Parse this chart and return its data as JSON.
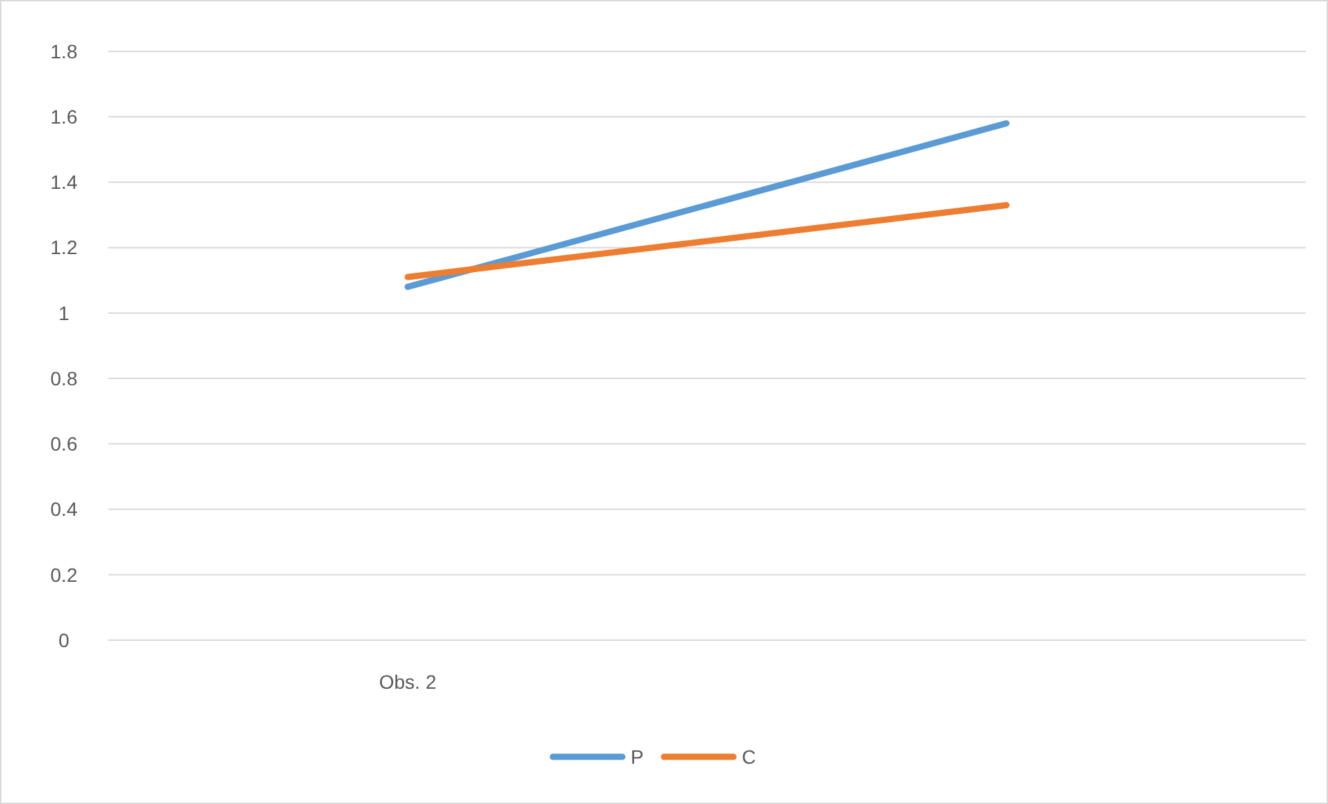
{
  "chart_data": {
    "type": "line",
    "categories": [
      "Obs. 2",
      null
    ],
    "series": [
      {
        "name": "P",
        "color": "#5b9bd5",
        "values": [
          1.08,
          1.58
        ]
      },
      {
        "name": "C",
        "color": "#ed7d31",
        "values": [
          1.11,
          1.33
        ]
      }
    ],
    "ylim": [
      0,
      1.8
    ],
    "yticks": [
      0,
      0.2,
      0.4,
      0.6,
      0.8,
      1,
      1.2,
      1.4,
      1.6,
      1.8
    ],
    "grid": "y",
    "legend": "bottom",
    "marker": "none",
    "line_style": "solid"
  }
}
